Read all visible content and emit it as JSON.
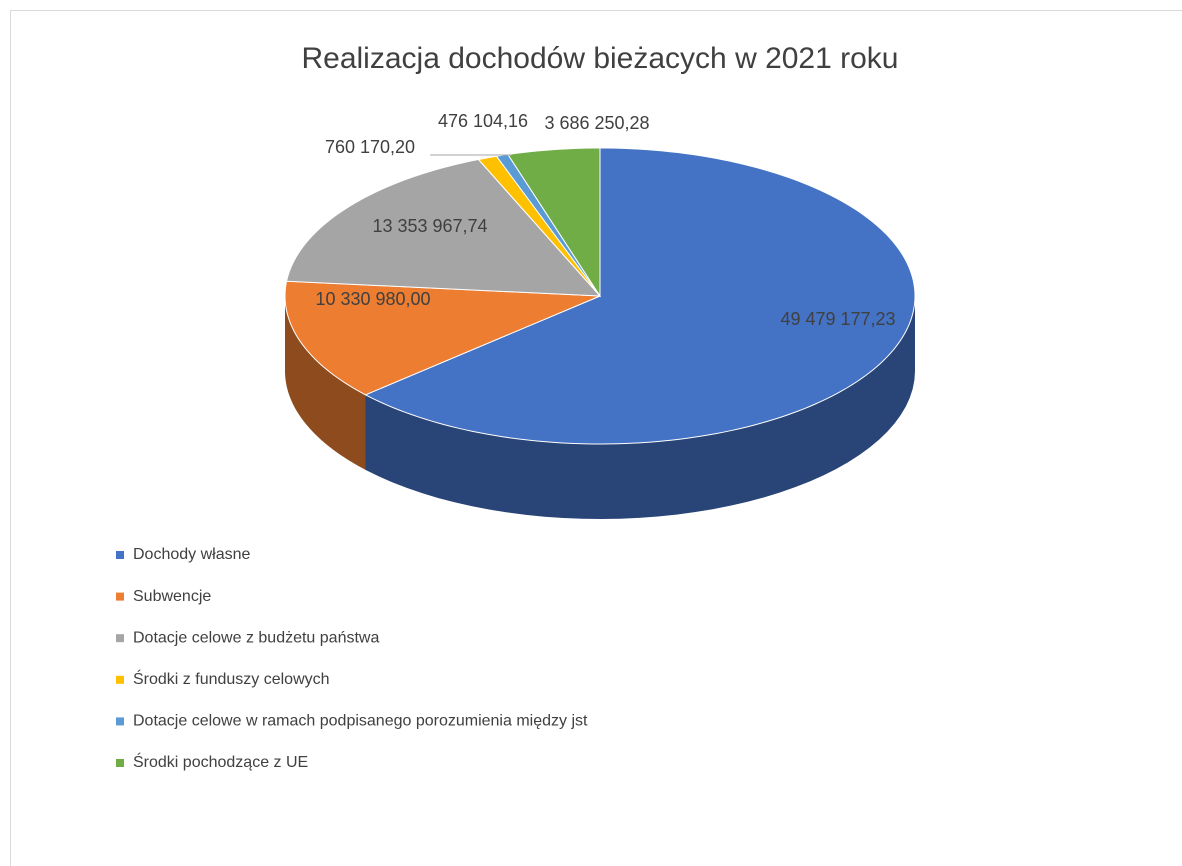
{
  "chart_data": {
    "type": "pie",
    "title": "Realizacja dochodów bieżacych w 2021 roku",
    "categories": [
      "Dochody własne",
      "Subwencje",
      "Dotacje celowe z budżetu państwa",
      "Środki z funduszy celowych",
      "Dotacje celowe w ramach podpisanego porozumienia między jst",
      "Środki pochodzące z UE"
    ],
    "values": [
      49479177.23,
      10330980.0,
      13353967.74,
      760170.2,
      476104.16,
      3686250.28
    ],
    "value_labels": [
      "49 479 177,23",
      "10 330 980,00",
      "13 353 967,74",
      "760 170,20",
      "476 104,16",
      "3 686 250,28"
    ],
    "colors": [
      "#4472c4",
      "#ed7d31",
      "#a5a5a5",
      "#ffc000",
      "#5b9bd5",
      "#70ad47"
    ],
    "legend": "bottom-left"
  }
}
